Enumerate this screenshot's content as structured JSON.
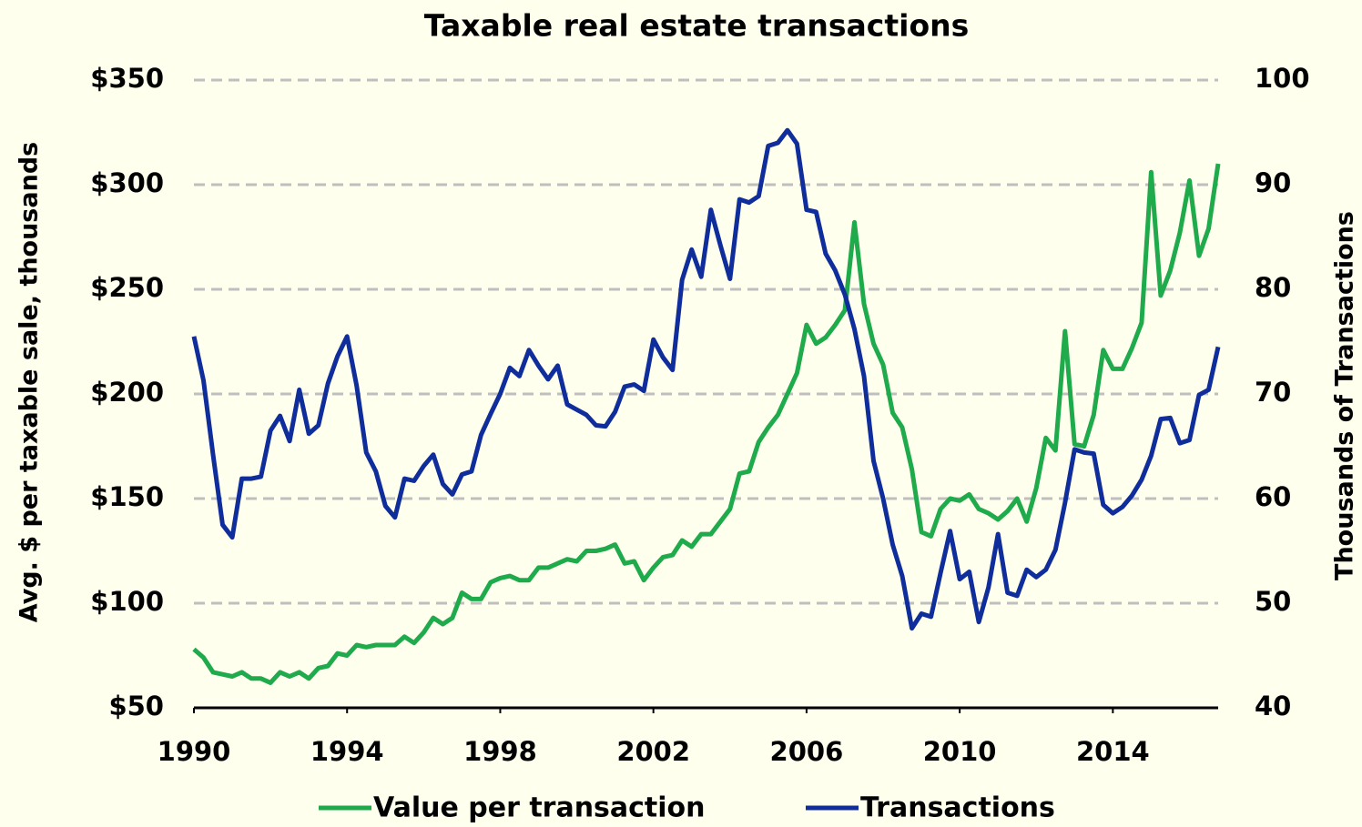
{
  "chart_data": {
    "type": "line",
    "title": "Taxable real estate transactions",
    "y_label": "Avg. $ per taxable sale, thousands",
    "y2_label": "Thousands of Transactions",
    "xlim": [
      1990,
      2016.75
    ],
    "xticks": [
      1990,
      1994,
      1998,
      2002,
      2006,
      2010,
      2014
    ],
    "ylim": [
      50,
      350
    ],
    "yticks": [
      {
        "value": 50,
        "label": "$50"
      },
      {
        "value": 100,
        "label": "$100"
      },
      {
        "value": 150,
        "label": "$150"
      },
      {
        "value": 200,
        "label": "$200"
      },
      {
        "value": 250,
        "label": "$250"
      },
      {
        "value": 300,
        "label": "$300"
      },
      {
        "value": 350,
        "label": "$350"
      }
    ],
    "y2lim": [
      40,
      100
    ],
    "y2ticks": [
      40,
      50,
      60,
      70,
      80,
      90,
      100
    ],
    "grid": true,
    "legend": "bottom",
    "x": [
      1990,
      1990.25,
      1990.5,
      1990.75,
      1991,
      1991.25,
      1991.5,
      1991.75,
      1992,
      1992.25,
      1992.5,
      1992.75,
      1993,
      1993.25,
      1993.5,
      1993.75,
      1994,
      1994.25,
      1994.5,
      1994.75,
      1995,
      1995.25,
      1995.5,
      1995.75,
      1996,
      1996.25,
      1996.5,
      1996.75,
      1997,
      1997.25,
      1997.5,
      1997.75,
      1998,
      1998.25,
      1998.5,
      1998.75,
      1999,
      1999.25,
      1999.5,
      1999.75,
      2000,
      2000.25,
      2000.5,
      2000.75,
      2001,
      2001.25,
      2001.5,
      2001.75,
      2002,
      2002.25,
      2002.5,
      2002.75,
      2003,
      2003.25,
      2003.5,
      2003.75,
      2004,
      2004.25,
      2004.5,
      2004.75,
      2005,
      2005.25,
      2005.5,
      2005.75,
      2006,
      2006.25,
      2006.5,
      2006.75,
      2007,
      2007.25,
      2007.5,
      2007.75,
      2008,
      2008.25,
      2008.5,
      2008.75,
      2009,
      2009.25,
      2009.5,
      2009.75,
      2010,
      2010.25,
      2010.5,
      2010.75,
      2011,
      2011.25,
      2011.5,
      2011.75,
      2012,
      2012.25,
      2012.5,
      2012.75,
      2013,
      2013.25,
      2013.5,
      2013.75,
      2014,
      2014.25,
      2014.5,
      2014.75,
      2015,
      2015.25,
      2015.5,
      2015.75,
      2016,
      2016.25,
      2016.5,
      2016.75
    ],
    "series": [
      {
        "name": "Value per transaction",
        "color": "#1faa4b",
        "values": [
          78,
          74,
          67,
          66,
          65,
          67,
          64,
          64,
          62,
          67,
          65,
          67,
          64,
          69,
          70,
          76,
          75,
          80,
          79,
          80,
          80,
          80,
          84,
          81,
          86,
          93,
          90,
          93,
          105,
          102,
          102,
          110,
          112,
          113,
          111,
          111,
          117,
          117,
          119,
          121,
          120,
          125,
          125,
          126,
          128,
          119,
          120,
          111,
          117,
          122,
          123,
          130,
          127,
          133,
          133,
          139,
          145,
          162,
          163,
          177,
          184,
          190,
          200,
          210,
          233,
          224,
          227,
          233,
          240,
          282,
          243,
          224,
          214,
          191,
          184,
          164,
          134,
          132,
          145,
          150,
          149,
          152,
          145,
          143,
          140,
          144,
          150,
          139,
          155,
          179,
          173,
          230,
          176,
          175,
          190,
          221,
          212,
          212,
          222,
          234,
          306,
          247,
          259,
          277,
          302,
          266,
          279,
          310
        ]
      },
      {
        "name": "Transactions",
        "color": "#0f2d9b",
        "axis": "y2",
        "values": [
          75.5,
          71.3,
          64.2,
          57.5,
          56.3,
          61.9,
          61.9,
          62.1,
          66.5,
          67.9,
          65.5,
          70.4,
          66.2,
          67.0,
          71.0,
          73.6,
          75.5,
          70.8,
          64.4,
          62.6,
          59.3,
          58.2,
          61.9,
          61.7,
          63.1,
          64.2,
          61.4,
          60.4,
          62.3,
          62.6,
          66.1,
          68.1,
          70.0,
          72.5,
          71.7,
          74.2,
          72.7,
          71.4,
          72.7,
          69.0,
          68.5,
          68.0,
          67.0,
          66.9,
          68.3,
          70.7,
          70.9,
          70.3,
          75.2,
          73.5,
          72.3,
          80.9,
          83.8,
          81.2,
          87.6,
          84.2,
          81.0,
          88.6,
          88.3,
          88.9,
          93.7,
          94.0,
          95.2,
          93.9,
          87.6,
          87.4,
          83.4,
          81.8,
          79.5,
          76.2,
          71.7,
          63.6,
          60.0,
          55.6,
          52.6,
          47.6,
          49.0,
          48.7,
          52.9,
          56.9,
          52.3,
          53.0,
          48.2,
          51.5,
          56.6,
          51.0,
          50.7,
          53.2,
          52.5,
          53.2,
          55.1,
          59.6,
          64.7,
          64.4,
          64.3,
          59.4,
          58.6,
          59.2,
          60.3,
          61.8,
          64.1,
          67.6,
          67.7,
          65.3,
          65.6,
          69.9,
          70.4,
          74.5
        ]
      }
    ]
  }
}
